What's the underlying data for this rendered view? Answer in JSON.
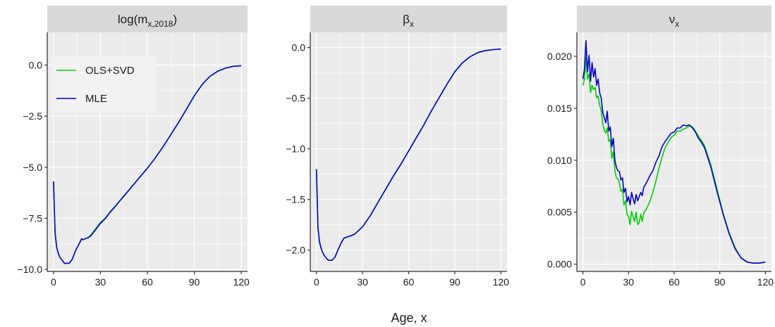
{
  "chart_data": [
    {
      "type": "line",
      "title": "log(m",
      "title_sub": "x,2018",
      "title_close": ")",
      "xlim": [
        -4,
        124
      ],
      "ylim": [
        -10.1,
        1.6
      ],
      "xticks": [
        0,
        30,
        60,
        90,
        120
      ],
      "xtick_labels": [
        "0",
        "30",
        "60",
        "90",
        "120"
      ],
      "yticks": [
        0,
        -2.5,
        -5,
        -7.5,
        -10
      ],
      "ytick_labels": [
        "0.0",
        "−2.5",
        "−5.0",
        "−7.5",
        "−10.0"
      ],
      "grid": true,
      "legend": {
        "position": "top-left",
        "entries": [
          "OLS+SVD",
          "MLE"
        ]
      },
      "series": [
        {
          "name": "OLS+SVD",
          "color": "#00cd00",
          "x": [
            0,
            1,
            2,
            3,
            4,
            5,
            6,
            7,
            8,
            10,
            12,
            14,
            16,
            18,
            19,
            20,
            22,
            24,
            26,
            28,
            30,
            33,
            36,
            40,
            45,
            50,
            55,
            60,
            65,
            70,
            75,
            80,
            85,
            90,
            95,
            100,
            105,
            110,
            115,
            120
          ],
          "y": [
            -5.7,
            -8.2,
            -8.9,
            -9.2,
            -9.4,
            -9.5,
            -9.6,
            -9.7,
            -9.7,
            -9.7,
            -9.5,
            -9.1,
            -8.8,
            -8.5,
            -8.55,
            -8.5,
            -8.45,
            -8.3,
            -8.1,
            -7.9,
            -7.7,
            -7.5,
            -7.2,
            -6.85,
            -6.4,
            -5.95,
            -5.5,
            -5.05,
            -4.55,
            -4.0,
            -3.4,
            -2.8,
            -2.15,
            -1.5,
            -0.95,
            -0.55,
            -0.3,
            -0.15,
            -0.06,
            -0.03
          ]
        },
        {
          "name": "MLE",
          "color": "#0000cd",
          "x": [
            0,
            1,
            2,
            3,
            4,
            5,
            6,
            7,
            8,
            10,
            12,
            14,
            16,
            18,
            19,
            20,
            22,
            24,
            26,
            28,
            30,
            33,
            36,
            40,
            45,
            50,
            55,
            60,
            65,
            70,
            75,
            80,
            85,
            90,
            95,
            100,
            105,
            110,
            115,
            120
          ],
          "y": [
            -5.7,
            -8.2,
            -8.9,
            -9.2,
            -9.4,
            -9.5,
            -9.6,
            -9.7,
            -9.7,
            -9.7,
            -9.5,
            -9.1,
            -8.8,
            -8.5,
            -8.55,
            -8.5,
            -8.45,
            -8.35,
            -8.15,
            -7.95,
            -7.75,
            -7.52,
            -7.22,
            -6.87,
            -6.41,
            -5.96,
            -5.5,
            -5.05,
            -4.55,
            -4.0,
            -3.4,
            -2.8,
            -2.15,
            -1.5,
            -0.95,
            -0.55,
            -0.3,
            -0.15,
            -0.06,
            -0.03
          ]
        }
      ]
    },
    {
      "type": "line",
      "title": "β",
      "title_sub": "x",
      "title_close": "",
      "xlim": [
        -4,
        124
      ],
      "ylim": [
        -2.21,
        0.15
      ],
      "xticks": [
        0,
        30,
        60,
        90,
        120
      ],
      "xtick_labels": [
        "0",
        "30",
        "60",
        "90",
        "120"
      ],
      "yticks": [
        0,
        -0.5,
        -1,
        -1.5,
        -2
      ],
      "ytick_labels": [
        "0.0",
        "−0.5",
        "−1.0",
        "−1.5",
        "−2.0"
      ],
      "grid": true,
      "series": [
        {
          "name": "OLS+SVD",
          "color": "#00cd00",
          "x": [
            0,
            1,
            2,
            3,
            4,
            5,
            6,
            7,
            8,
            10,
            12,
            14,
            16,
            18,
            20,
            22,
            25,
            30,
            35,
            40,
            45,
            50,
            55,
            60,
            65,
            70,
            75,
            80,
            85,
            90,
            95,
            100,
            105,
            110,
            115,
            120
          ],
          "y": [
            -1.2,
            -1.78,
            -1.92,
            -1.98,
            -2.02,
            -2.05,
            -2.07,
            -2.09,
            -2.1,
            -2.1,
            -2.07,
            -2.0,
            -1.93,
            -1.88,
            -1.87,
            -1.86,
            -1.84,
            -1.77,
            -1.66,
            -1.53,
            -1.4,
            -1.27,
            -1.15,
            -1.02,
            -0.89,
            -0.76,
            -0.62,
            -0.49,
            -0.36,
            -0.24,
            -0.15,
            -0.09,
            -0.05,
            -0.03,
            -0.02,
            -0.015
          ]
        },
        {
          "name": "MLE",
          "color": "#0000cd",
          "x": [
            0,
            1,
            2,
            3,
            4,
            5,
            6,
            7,
            8,
            10,
            12,
            14,
            16,
            18,
            20,
            22,
            25,
            30,
            35,
            40,
            45,
            50,
            55,
            60,
            65,
            70,
            75,
            80,
            85,
            90,
            95,
            100,
            105,
            110,
            115,
            120
          ],
          "y": [
            -1.2,
            -1.78,
            -1.92,
            -1.98,
            -2.02,
            -2.05,
            -2.07,
            -2.09,
            -2.1,
            -2.1,
            -2.07,
            -2.0,
            -1.93,
            -1.88,
            -1.87,
            -1.86,
            -1.84,
            -1.77,
            -1.66,
            -1.53,
            -1.4,
            -1.27,
            -1.15,
            -1.02,
            -0.89,
            -0.76,
            -0.62,
            -0.49,
            -0.36,
            -0.24,
            -0.15,
            -0.09,
            -0.05,
            -0.03,
            -0.02,
            -0.015
          ]
        }
      ]
    },
    {
      "type": "line",
      "title": "ν",
      "title_sub": "x",
      "title_close": "",
      "xlim": [
        -4,
        124
      ],
      "ylim": [
        -0.0007,
        0.0223
      ],
      "xticks": [
        0,
        30,
        60,
        90,
        120
      ],
      "xtick_labels": [
        "0",
        "30",
        "60",
        "90",
        "120"
      ],
      "yticks": [
        0,
        0.005,
        0.01,
        0.015,
        0.02
      ],
      "ytick_labels": [
        "0.000",
        "0.005",
        "0.010",
        "0.015",
        "0.020"
      ],
      "grid": true,
      "series": [
        {
          "name": "OLS+SVD",
          "color": "#00cd00",
          "x": [
            0,
            1,
            2,
            3,
            4,
            5,
            6,
            7,
            8,
            9,
            10,
            11,
            12,
            13,
            14,
            15,
            16,
            17,
            18,
            19,
            20,
            21,
            22,
            23,
            24,
            25,
            26,
            27,
            28,
            29,
            30,
            31,
            32,
            33,
            34,
            35,
            36,
            37,
            38,
            39,
            40,
            42,
            44,
            46,
            48,
            50,
            52,
            54,
            56,
            58,
            60,
            62,
            64,
            66,
            68,
            70,
            72,
            74,
            76,
            78,
            80,
            84,
            88,
            92,
            96,
            100,
            104,
            108,
            112,
            116,
            120
          ],
          "y": [
            0.0172,
            0.0178,
            0.0199,
            0.0178,
            0.0183,
            0.0165,
            0.0172,
            0.0168,
            0.017,
            0.016,
            0.0162,
            0.0153,
            0.0148,
            0.0135,
            0.0129,
            0.0126,
            0.0131,
            0.0118,
            0.012,
            0.0102,
            0.0108,
            0.009,
            0.0083,
            0.0082,
            0.0078,
            0.007,
            0.0072,
            0.0057,
            0.0061,
            0.0048,
            0.0046,
            0.0038,
            0.0051,
            0.0046,
            0.0041,
            0.005,
            0.0038,
            0.004,
            0.0048,
            0.0041,
            0.0049,
            0.0054,
            0.006,
            0.0069,
            0.008,
            0.0092,
            0.0103,
            0.0112,
            0.0117,
            0.0122,
            0.0124,
            0.0128,
            0.0128,
            0.013,
            0.0131,
            0.0133,
            0.0132,
            0.0128,
            0.0123,
            0.0119,
            0.0114,
            0.0096,
            0.0073,
            0.005,
            0.0031,
            0.0016,
            0.0006,
            0.0002,
            0.0001,
            0.0001,
            0.0002
          ]
        },
        {
          "name": "MLE",
          "color": "#0000cd",
          "x": [
            0,
            1,
            2,
            3,
            4,
            5,
            6,
            7,
            8,
            9,
            10,
            11,
            12,
            13,
            14,
            15,
            16,
            17,
            18,
            19,
            20,
            21,
            22,
            23,
            24,
            25,
            26,
            27,
            28,
            29,
            30,
            31,
            32,
            33,
            34,
            35,
            36,
            37,
            38,
            39,
            40,
            42,
            44,
            46,
            48,
            50,
            52,
            54,
            56,
            58,
            60,
            62,
            64,
            66,
            68,
            70,
            72,
            74,
            76,
            78,
            80,
            84,
            88,
            92,
            96,
            100,
            104,
            108,
            112,
            116,
            120
          ],
          "y": [
            0.0178,
            0.0188,
            0.0215,
            0.0185,
            0.0201,
            0.0176,
            0.0194,
            0.018,
            0.0188,
            0.0172,
            0.0178,
            0.0165,
            0.016,
            0.0146,
            0.0141,
            0.0136,
            0.0147,
            0.0128,
            0.0132,
            0.0113,
            0.0121,
            0.01,
            0.0093,
            0.009,
            0.0089,
            0.0081,
            0.0083,
            0.0069,
            0.0073,
            0.006,
            0.0065,
            0.0057,
            0.0069,
            0.0063,
            0.0058,
            0.0067,
            0.0061,
            0.0065,
            0.0069,
            0.0066,
            0.0074,
            0.0079,
            0.0085,
            0.009,
            0.0098,
            0.0104,
            0.0113,
            0.0118,
            0.0122,
            0.0126,
            0.0127,
            0.0131,
            0.0131,
            0.0134,
            0.0133,
            0.0134,
            0.0131,
            0.0127,
            0.0121,
            0.0117,
            0.0112,
            0.0094,
            0.0071,
            0.0049,
            0.003,
            0.0015,
            0.0006,
            0.0002,
            0.0001,
            0.0001,
            0.0002
          ]
        }
      ]
    }
  ],
  "xlabel": "Age, x",
  "panel_background": "#ebebeb",
  "strip_background": "#d9d9d9",
  "grid_color": "#ffffff"
}
